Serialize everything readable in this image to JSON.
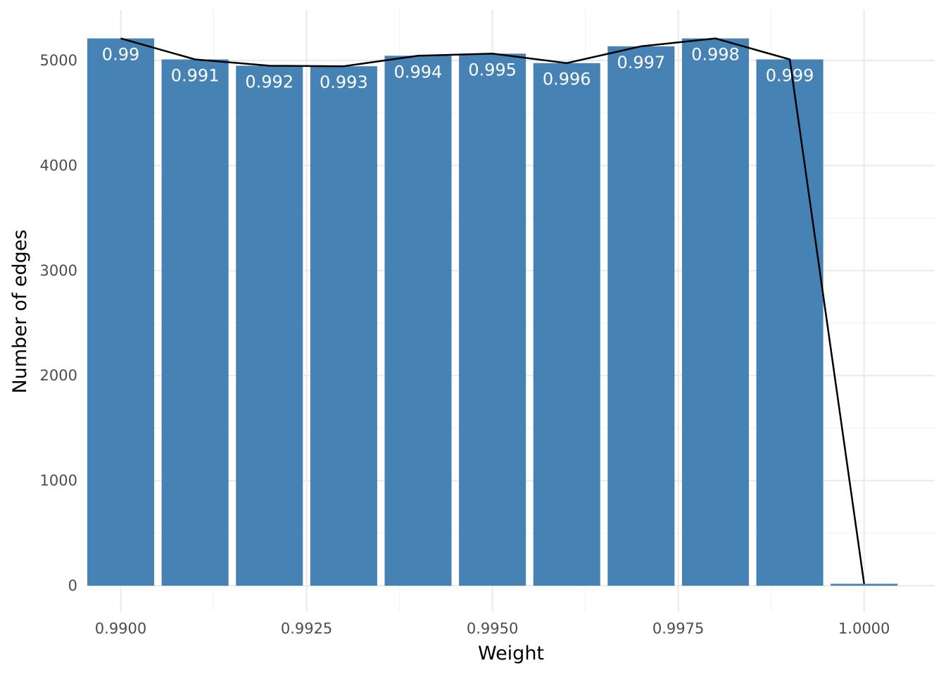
{
  "chart_data": {
    "type": "bar",
    "title": "",
    "xlabel": "Weight",
    "ylabel": "Number of edges",
    "xlim": [
      0.98955,
      1.00095
    ],
    "ylim": [
      0,
      5300
    ],
    "x_ticks": [
      0.99,
      0.9925,
      0.995,
      0.9975,
      1.0
    ],
    "x_tick_labels": [
      "0.9900",
      "0.9925",
      "0.9950",
      "0.9975",
      "1.0000"
    ],
    "y_ticks": [
      0,
      1000,
      2000,
      3000,
      4000,
      5000
    ],
    "y_tick_labels": [
      "0",
      "1000",
      "2000",
      "3000",
      "4000",
      "5000"
    ],
    "bar_width": 0.0009,
    "grid": true,
    "colors": {
      "bar": "#4682b4",
      "line": "#000000",
      "bar_label": "#ffffff"
    },
    "bars": [
      {
        "x": 0.99,
        "value": 5210,
        "label": "0.99"
      },
      {
        "x": 0.991,
        "value": 5010,
        "label": "0.991"
      },
      {
        "x": 0.992,
        "value": 4950,
        "label": "0.992"
      },
      {
        "x": 0.993,
        "value": 4945,
        "label": "0.993"
      },
      {
        "x": 0.994,
        "value": 5045,
        "label": "0.994"
      },
      {
        "x": 0.995,
        "value": 5065,
        "label": "0.995"
      },
      {
        "x": 0.996,
        "value": 4975,
        "label": "0.996"
      },
      {
        "x": 0.997,
        "value": 5135,
        "label": "0.997"
      },
      {
        "x": 0.998,
        "value": 5210,
        "label": "0.998"
      },
      {
        "x": 0.999,
        "value": 5010,
        "label": "0.999"
      },
      {
        "x": 1.0,
        "value": 18,
        "label": ""
      }
    ]
  }
}
